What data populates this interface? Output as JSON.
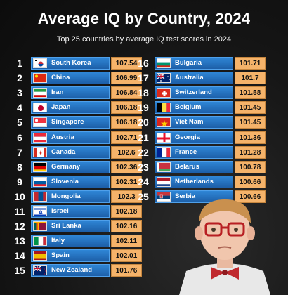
{
  "title": "Average IQ by Country, 2024",
  "subtitle": "Top 25 countries by average IQ test scores in 2024",
  "chart_data": {
    "type": "bar",
    "title": "Average IQ by Country, 2024",
    "subtitle": "Top 25 countries by average IQ test scores in 2024",
    "xlabel": "",
    "ylabel": "",
    "categories": [
      "South Korea",
      "China",
      "Iran",
      "Japan",
      "Singapore",
      "Austria",
      "Canada",
      "Germany",
      "Slovenia",
      "Mongolia",
      "Israel",
      "Sri Lanka",
      "Italy",
      "Spain",
      "New Zealand",
      "Bulgaria",
      "Australia",
      "Switzerland",
      "Belgium",
      "Viet Nam",
      "Georgia",
      "France",
      "Belarus",
      "Netherlands",
      "Serbia"
    ],
    "ranks": [
      "1",
      "2",
      "3",
      "4",
      "5",
      "6",
      "7",
      "8",
      "9",
      "10",
      "11",
      "12",
      "13",
      "14",
      "15",
      "16",
      "17",
      "18",
      "19",
      "20",
      "21",
      "22",
      "23",
      "24",
      "25"
    ],
    "values": [
      107.54,
      106.99,
      106.84,
      106.18,
      106.18,
      102.71,
      102.6,
      102.36,
      102.31,
      102.3,
      102.18,
      102.16,
      102.11,
      102.01,
      101.76,
      101.71,
      101.7,
      101.58,
      101.45,
      101.45,
      101.36,
      101.28,
      100.78,
      100.66,
      100.66
    ],
    "value_labels": [
      "107.54",
      "106.99",
      "106.84",
      "106.18",
      "106.18",
      "102.71",
      "102.6",
      "102.36",
      "102.31",
      "102.3",
      "102.18",
      "102.16",
      "102.11",
      "102.01",
      "101.76",
      "101.71",
      "101.7",
      "101.58",
      "101.45",
      "101.45",
      "101.36",
      "101.28",
      "100.78",
      "100.66",
      "100.66"
    ],
    "flag_icons": [
      "south-korea-flag-icon",
      "china-flag-icon",
      "iran-flag-icon",
      "japan-flag-icon",
      "singapore-flag-icon",
      "austria-flag-icon",
      "canada-flag-icon",
      "germany-flag-icon",
      "slovenia-flag-icon",
      "mongolia-flag-icon",
      "israel-flag-icon",
      "sri-lanka-flag-icon",
      "italy-flag-icon",
      "spain-flag-icon",
      "new-zealand-flag-icon",
      "bulgaria-flag-icon",
      "australia-flag-icon",
      "switzerland-flag-icon",
      "belgium-flag-icon",
      "viet-nam-flag-icon",
      "georgia-flag-icon",
      "france-flag-icon",
      "belarus-flag-icon",
      "netherlands-flag-icon",
      "serbia-flag-icon"
    ],
    "colors": {
      "bar": "#2a78c8",
      "score_box": "#f5b36a",
      "background": "#141414"
    }
  }
}
